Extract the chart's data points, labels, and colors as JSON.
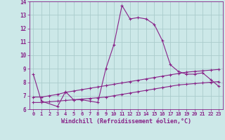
{
  "xlabel": "Windchill (Refroidissement éolien,°C)",
  "bg_color": "#cce8e8",
  "grid_color": "#aacccc",
  "line_color": "#882288",
  "xlim": [
    -0.5,
    23.5
  ],
  "ylim": [
    6,
    14
  ],
  "yticks": [
    6,
    7,
    8,
    9,
    10,
    11,
    12,
    13,
    14
  ],
  "xticks": [
    0,
    1,
    2,
    3,
    4,
    5,
    6,
    7,
    8,
    9,
    10,
    11,
    12,
    13,
    14,
    15,
    16,
    17,
    18,
    19,
    20,
    21,
    22,
    23
  ],
  "series1_x": [
    0,
    1,
    3,
    4,
    5,
    6,
    7,
    8,
    9,
    10,
    11,
    12,
    13,
    14,
    15,
    16,
    17,
    18,
    19,
    20,
    21,
    22,
    23
  ],
  "series1_y": [
    8.6,
    6.6,
    6.2,
    7.3,
    6.7,
    6.7,
    6.6,
    6.5,
    9.0,
    10.8,
    13.7,
    12.7,
    12.8,
    12.7,
    12.3,
    11.1,
    9.3,
    8.8,
    8.6,
    8.6,
    8.7,
    8.2,
    7.7
  ],
  "series2_x": [
    0,
    1,
    2,
    3,
    4,
    5,
    6,
    7,
    8,
    9,
    10,
    11,
    12,
    13,
    14,
    15,
    16,
    17,
    18,
    19,
    20,
    21,
    22,
    23
  ],
  "series2_y": [
    6.9,
    6.9,
    7.0,
    7.1,
    7.25,
    7.35,
    7.45,
    7.55,
    7.65,
    7.75,
    7.85,
    7.95,
    8.05,
    8.15,
    8.25,
    8.35,
    8.45,
    8.55,
    8.65,
    8.75,
    8.8,
    8.85,
    8.9,
    8.95
  ],
  "series3_x": [
    0,
    1,
    2,
    3,
    4,
    5,
    6,
    7,
    8,
    9,
    10,
    11,
    12,
    13,
    14,
    15,
    16,
    17,
    18,
    19,
    20,
    21,
    22,
    23
  ],
  "series3_y": [
    6.5,
    6.5,
    6.55,
    6.6,
    6.65,
    6.7,
    6.75,
    6.8,
    6.85,
    6.9,
    7.0,
    7.1,
    7.2,
    7.3,
    7.4,
    7.5,
    7.6,
    7.7,
    7.8,
    7.85,
    7.9,
    7.95,
    8.0,
    8.05
  ]
}
